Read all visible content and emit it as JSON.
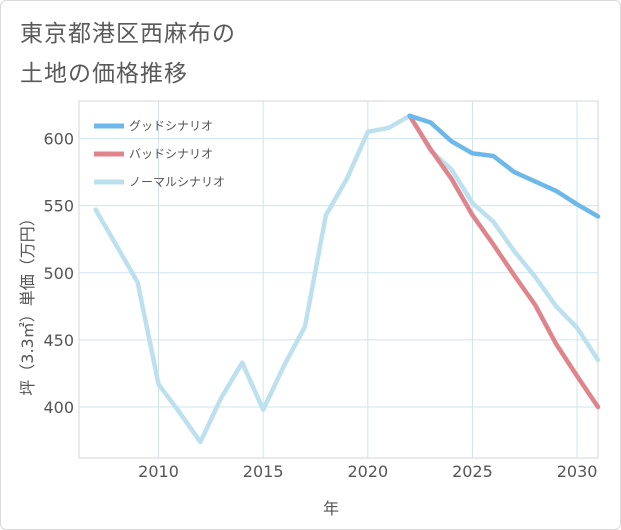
{
  "title_line1": "東京都港区西麻布の",
  "title_line2": "土地の価格推移",
  "chart_data": {
    "type": "line",
    "xlabel": "年",
    "ylabel": "坪（3.3㎡）単価（万円）",
    "xlim": [
      2006.2,
      2031
    ],
    "ylim": [
      362,
      628
    ],
    "x_ticks": [
      2010,
      2015,
      2020,
      2025,
      2030
    ],
    "y_ticks": [
      400,
      450,
      500,
      550,
      600
    ],
    "grid": true,
    "legend_position": "top-left",
    "series": [
      {
        "name": "グッドシナリオ",
        "color": "#6cb8ea",
        "x": [
          2022,
          2023,
          2024,
          2025,
          2026,
          2027,
          2028,
          2029,
          2030,
          2031
        ],
        "values": [
          617,
          612,
          598,
          589,
          587,
          575,
          568,
          561,
          551,
          542
        ]
      },
      {
        "name": "バッドシナリオ",
        "color": "#e0848c",
        "x": [
          2022,
          2023,
          2024,
          2025,
          2026,
          2027,
          2028,
          2029,
          2030,
          2031
        ],
        "values": [
          617,
          592,
          570,
          543,
          521,
          498,
          476,
          447,
          423,
          400
        ]
      },
      {
        "name": "ノーマルシナリオ",
        "color": "#bde0ef",
        "x": [
          2007,
          2008,
          2009,
          2010,
          2011,
          2012,
          2013,
          2014,
          2015,
          2016,
          2017,
          2018,
          2019,
          2020,
          2021,
          2022,
          2023,
          2024,
          2025,
          2026,
          2027,
          2028,
          2029,
          2030,
          2031
        ],
        "values": [
          547,
          520,
          493,
          417,
          396,
          374,
          407,
          433,
          398,
          431,
          460,
          543,
          570,
          605,
          608,
          617,
          591,
          577,
          552,
          538,
          516,
          497,
          475,
          459,
          435
        ]
      }
    ]
  }
}
